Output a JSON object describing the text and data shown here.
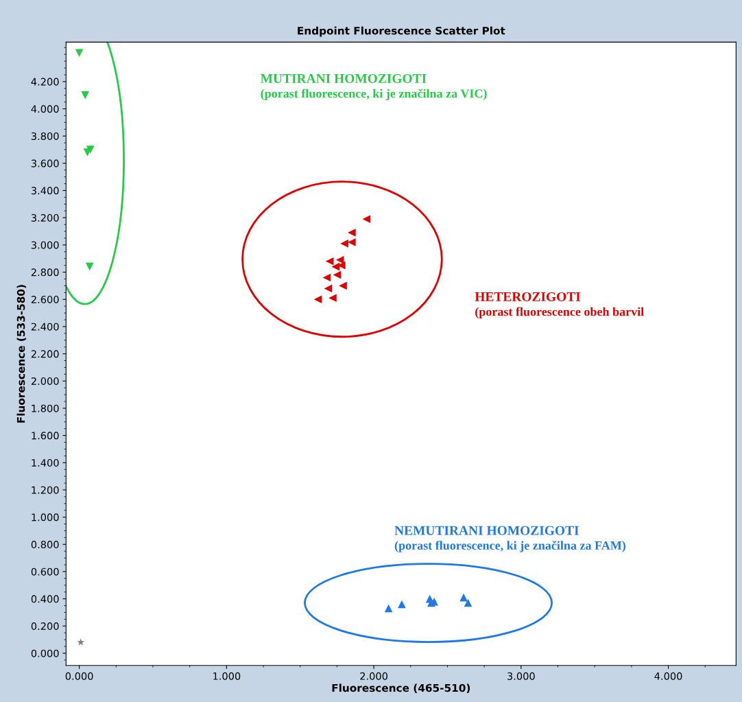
{
  "chart_data": {
    "type": "scatter",
    "title": "Endpoint Fluorescence Scatter Plot",
    "xlabel": "Fluorescence (465-510)",
    "ylabel": "Fluorescence (533-580)",
    "xlim": [
      -0.09,
      4.46
    ],
    "ylim": [
      -0.09,
      4.49
    ],
    "xticks": [
      {
        "value": 0,
        "label": "0.000"
      },
      {
        "value": 1,
        "label": "1.000"
      },
      {
        "value": 2,
        "label": "2.000"
      },
      {
        "value": 3,
        "label": "3.000"
      },
      {
        "value": 4,
        "label": "4.000"
      }
    ],
    "yticks": [
      {
        "value": 0,
        "label": "0.000"
      },
      {
        "value": 0.2,
        "label": "0.200"
      },
      {
        "value": 0.4,
        "label": "0.400"
      },
      {
        "value": 0.6,
        "label": "0.600"
      },
      {
        "value": 0.8,
        "label": "0.800"
      },
      {
        "value": 1.0,
        "label": "1.000"
      },
      {
        "value": 1.2,
        "label": "1.200"
      },
      {
        "value": 1.4,
        "label": "1.400"
      },
      {
        "value": 1.6,
        "label": "1.600"
      },
      {
        "value": 1.8,
        "label": "1.800"
      },
      {
        "value": 2.0,
        "label": "2.000"
      },
      {
        "value": 2.2,
        "label": "2.200"
      },
      {
        "value": 2.4,
        "label": "2.400"
      },
      {
        "value": 2.6,
        "label": "2.600"
      },
      {
        "value": 2.8,
        "label": "2.800"
      },
      {
        "value": 3.0,
        "label": "3.000"
      },
      {
        "value": 3.2,
        "label": "3.200"
      },
      {
        "value": 3.4,
        "label": "3.400"
      },
      {
        "value": 3.6,
        "label": "3.600"
      },
      {
        "value": 3.8,
        "label": "3.800"
      },
      {
        "value": 4.0,
        "label": "4.000"
      },
      {
        "value": 4.2,
        "label": "4.200"
      }
    ],
    "grid": false,
    "legend": false,
    "series": [
      {
        "color": "#22cc44",
        "marker": "triangle_down",
        "x": [
          0.0,
          0.04,
          null,
          0.055,
          0.075,
          0.07
        ],
        "values": [
          4.41,
          4.1,
          null,
          3.68,
          3.7,
          2.84
        ]
      },
      {
        "color": "#e00000",
        "marker": "triangle_left",
        "x": [
          1.95,
          1.85,
          1.85,
          1.8,
          1.7,
          1.77,
          1.78,
          1.74,
          1.75,
          1.68,
          1.79,
          1.69,
          1.72,
          1.62
        ],
        "values": [
          3.19,
          3.09,
          3.02,
          3.01,
          2.88,
          2.89,
          2.85,
          2.84,
          2.78,
          2.76,
          2.7,
          2.68,
          2.61,
          2.6
        ]
      },
      {
        "color": "#1e78e6",
        "marker": "triangle",
        "x": [
          2.1,
          2.19,
          2.38,
          2.41,
          2.39,
          2.61,
          2.64
        ],
        "values": [
          0.33,
          0.36,
          0.4,
          0.38,
          0.37,
          0.41,
          0.37
        ]
      },
      {
        "color": "#808080",
        "marker": "star",
        "x": [
          0.01
        ],
        "values": [
          0.08
        ]
      }
    ],
    "annotations": [
      "MUTIRANI HOMOZIGOTI\n(porast fluorescence, ki je značilna za VIC)",
      "HETEROZIGOTI\n(porast fluorescence obeh barvil",
      "NEMUTIRANI HOMOZIGOTI\n(porast fluorescence, ki je značilna za FAM)"
    ]
  }
}
